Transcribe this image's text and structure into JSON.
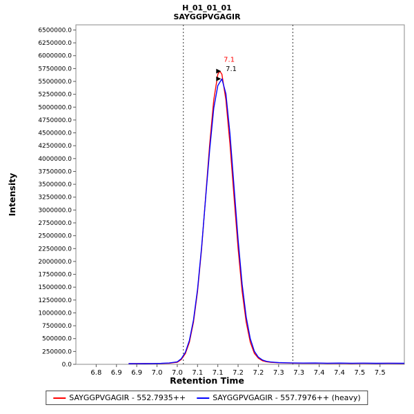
{
  "title": {
    "line1": "H_01_01_01",
    "line2": "SAYGGPVGAGIR"
  },
  "chart_data": {
    "type": "line",
    "title": "H_01_01_01 / SAYGGPVGAGIR",
    "xlabel": "Retention Time",
    "ylabel": "Intensity",
    "xlim": [
      6.75,
      7.56
    ],
    "ylim": [
      0,
      6600000
    ],
    "grid": false,
    "legend_position": "bottom",
    "x_tick_values": [
      6.8,
      6.85,
      6.9,
      6.95,
      7.0,
      7.05,
      7.1,
      7.15,
      7.2,
      7.25,
      7.3,
      7.35,
      7.4,
      7.45,
      7.5
    ],
    "x_tick_labels": [
      "6.8",
      "6.9",
      "6.9",
      "7.0",
      "7.0",
      "7.1",
      "7.1",
      "7.2",
      "7.2",
      "7.3",
      "7.3",
      "7.4",
      "7.4",
      "7.5",
      "7.5"
    ],
    "y_tick_labels": [
      "6500000.0",
      "6250000.0",
      "6000000.0",
      "5750000.0",
      "5500000.0",
      "5250000.0",
      "5000000.0",
      "4750000.0",
      "4500000.0",
      "4250000.0",
      "4000000.0",
      "3750000.0",
      "3500000.0",
      "3250000.0",
      "3000000.0",
      "2750000.0",
      "2500000.0",
      "2250000.0",
      "2000000.0",
      "1750000.0",
      "1500000.0",
      "1250000.0",
      "1000000.0",
      "750000.0",
      "500000.0",
      "250000.0",
      "0.0"
    ],
    "boundaries": [
      7.015,
      7.285
    ],
    "series": [
      {
        "name": "SAYGGPVGAGIR - 552.7935++",
        "color": "#ff0000",
        "points": [
          [
            6.88,
            15000
          ],
          [
            6.9,
            14000
          ],
          [
            6.92,
            16000
          ],
          [
            6.94,
            15000
          ],
          [
            6.96,
            18000
          ],
          [
            6.98,
            22000
          ],
          [
            7.0,
            40000
          ],
          [
            7.01,
            95000
          ],
          [
            7.02,
            210000
          ],
          [
            7.03,
            430000
          ],
          [
            7.04,
            820000
          ],
          [
            7.05,
            1420000
          ],
          [
            7.06,
            2250000
          ],
          [
            7.07,
            3250000
          ],
          [
            7.08,
            4280000
          ],
          [
            7.09,
            5140000
          ],
          [
            7.1,
            5640000
          ],
          [
            7.105,
            5700000
          ],
          [
            7.11,
            5640000
          ],
          [
            7.12,
            5140000
          ],
          [
            7.13,
            4280000
          ],
          [
            7.14,
            3250000
          ],
          [
            7.15,
            2250000
          ],
          [
            7.16,
            1420000
          ],
          [
            7.17,
            820000
          ],
          [
            7.18,
            430000
          ],
          [
            7.19,
            215000
          ],
          [
            7.2,
            120000
          ],
          [
            7.21,
            70000
          ],
          [
            7.22,
            50000
          ],
          [
            7.23,
            40000
          ],
          [
            7.24,
            35000
          ],
          [
            7.25,
            30000
          ],
          [
            7.27,
            26000
          ],
          [
            7.29,
            23000
          ],
          [
            7.31,
            21000
          ],
          [
            7.34,
            23000
          ],
          [
            7.37,
            19000
          ],
          [
            7.4,
            21000
          ],
          [
            7.43,
            18000
          ],
          [
            7.46,
            21000
          ],
          [
            7.49,
            18000
          ],
          [
            7.52,
            20000
          ],
          [
            7.56,
            18000
          ]
        ]
      },
      {
        "name": "SAYGGPVGAGIR - 557.7976++ (heavy)",
        "color": "#0000ff",
        "points": [
          [
            6.88,
            13000
          ],
          [
            6.9,
            15000
          ],
          [
            6.92,
            14000
          ],
          [
            6.94,
            16000
          ],
          [
            6.96,
            19000
          ],
          [
            6.98,
            25000
          ],
          [
            7.0,
            48000
          ],
          [
            7.01,
            110000
          ],
          [
            7.02,
            235000
          ],
          [
            7.03,
            465000
          ],
          [
            7.04,
            860000
          ],
          [
            7.05,
            1460000
          ],
          [
            7.06,
            2280000
          ],
          [
            7.07,
            3230000
          ],
          [
            7.08,
            4170000
          ],
          [
            7.09,
            4980000
          ],
          [
            7.1,
            5420000
          ],
          [
            7.11,
            5550000
          ],
          [
            7.12,
            5260000
          ],
          [
            7.13,
            4480000
          ],
          [
            7.14,
            3450000
          ],
          [
            7.15,
            2420000
          ],
          [
            7.16,
            1560000
          ],
          [
            7.17,
            920000
          ],
          [
            7.18,
            500000
          ],
          [
            7.19,
            255000
          ],
          [
            7.2,
            140000
          ],
          [
            7.21,
            85000
          ],
          [
            7.22,
            58000
          ],
          [
            7.23,
            46000
          ],
          [
            7.24,
            39000
          ],
          [
            7.25,
            34000
          ],
          [
            7.27,
            29000
          ],
          [
            7.29,
            26000
          ],
          [
            7.31,
            24000
          ],
          [
            7.34,
            26000
          ],
          [
            7.37,
            22000
          ],
          [
            7.4,
            24000
          ],
          [
            7.43,
            21000
          ],
          [
            7.46,
            23000
          ],
          [
            7.49,
            20000
          ],
          [
            7.52,
            22000
          ],
          [
            7.56,
            20000
          ]
        ]
      }
    ],
    "annotations": [
      {
        "text": "7.1",
        "color": "#ff0000",
        "x": 7.128,
        "y": 5880000
      },
      {
        "text": "7.1",
        "color": "#000000",
        "x": 7.133,
        "y": 5700000
      }
    ],
    "markers": [
      {
        "x": 7.096,
        "y": 5700000
      },
      {
        "x": 7.096,
        "y": 5550000
      }
    ]
  }
}
